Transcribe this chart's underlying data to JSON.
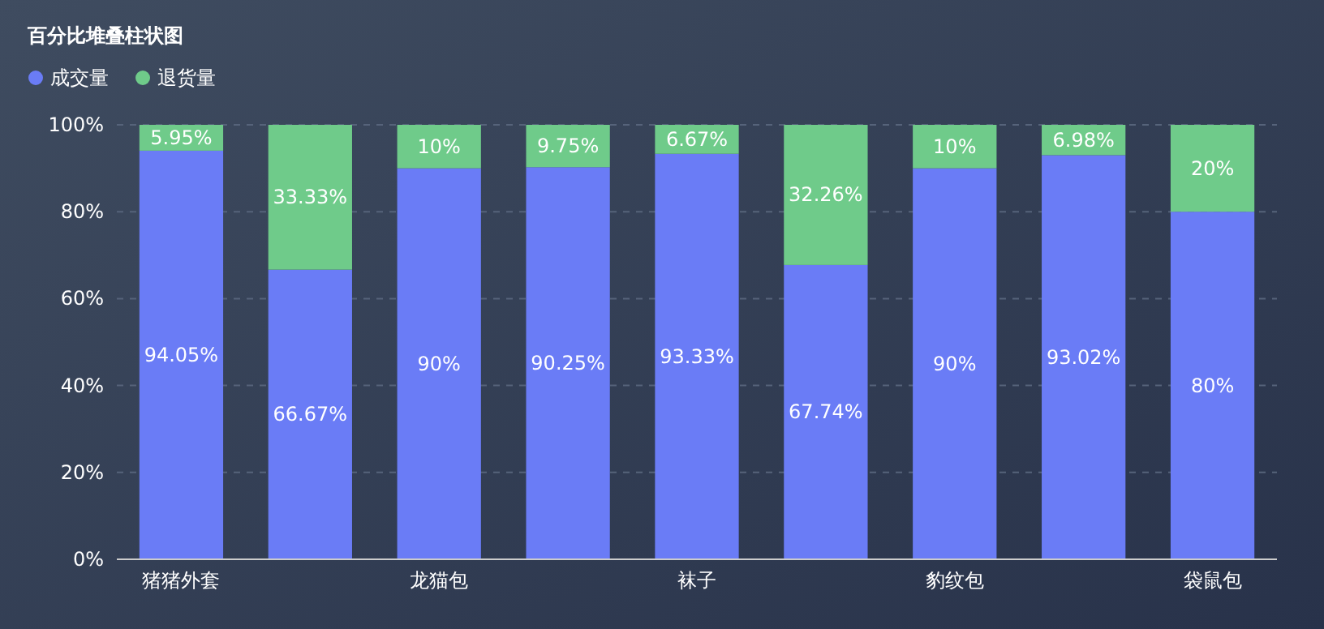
{
  "chart_data": {
    "type": "bar",
    "title": "百分比堆叠柱状图",
    "stacked": true,
    "categories": [
      "猪猪外套",
      null,
      "龙猫包",
      null,
      "袜子",
      null,
      "豹纹包",
      null,
      "袋鼠包"
    ],
    "series": [
      {
        "name": "成交量",
        "color": "#6a7cf6",
        "values": [
          94.05,
          66.67,
          90,
          90.25,
          93.33,
          67.74,
          90,
          93.02,
          80
        ],
        "value_labels": [
          "94.05%",
          "66.67%",
          "90%",
          "90.25%",
          "93.33%",
          "67.74%",
          "90%",
          "93.02%",
          "80%"
        ]
      },
      {
        "name": "退货量",
        "color": "#6fcb8a",
        "values": [
          5.95,
          33.33,
          10,
          9.75,
          6.67,
          32.26,
          10,
          6.98,
          20
        ],
        "value_labels": [
          "5.95%",
          "33.33%",
          "10%",
          "9.75%",
          "6.67%",
          "32.26%",
          "10%",
          "6.98%",
          "20%"
        ]
      }
    ],
    "ylim": [
      0,
      100
    ],
    "yticks": [
      {
        "value": 0,
        "label": "0%"
      },
      {
        "value": 20,
        "label": "20%"
      },
      {
        "value": 40,
        "label": "40%"
      },
      {
        "value": 60,
        "label": "60%"
      },
      {
        "value": 80,
        "label": "80%"
      },
      {
        "value": 100,
        "label": "100%"
      }
    ],
    "grid": "y",
    "legend": "top left"
  }
}
